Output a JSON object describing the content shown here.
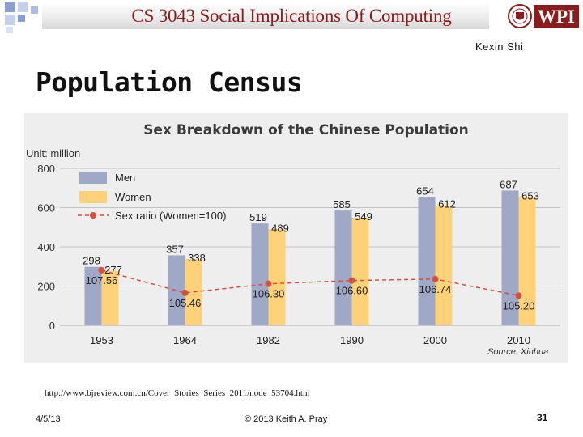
{
  "header": {
    "course_title": "CS 3043 Social Implications Of Computing",
    "logo_text": "WPI",
    "author": "Kexin Shi"
  },
  "slide": {
    "title": "Population Census",
    "source_url": "http://www.bjreview.com.cn/Cover_Stories_Series_2011/node_53704.htm"
  },
  "footer": {
    "date": "4/5/13",
    "copyright": "© 2013 Keith A. Pray",
    "page_number": "31"
  },
  "colors": {
    "men": "#9fa8c6",
    "women": "#ffd27a",
    "ratio": "#d4503f",
    "title_red": "#8c1c1c"
  },
  "chart_data": {
    "type": "bar",
    "title": "Sex Breakdown of the Chinese Population",
    "unit_label": "Unit: million",
    "categories": [
      "1953",
      "1964",
      "1982",
      "1990",
      "2000",
      "2010"
    ],
    "series": [
      {
        "name": "Men",
        "values": [
          298,
          357,
          519,
          585,
          654,
          687
        ]
      },
      {
        "name": "Women",
        "values": [
          277,
          338,
          489,
          549,
          612,
          653
        ]
      }
    ],
    "line_series": {
      "name": "Sex ratio (Women=100)",
      "values": [
        107.56,
        105.46,
        106.3,
        106.6,
        106.74,
        105.2
      ],
      "labels": [
        "107.56",
        "105.46",
        "106.30",
        "106.60",
        "106.74",
        "105.20"
      ]
    },
    "ylim": [
      0,
      800
    ],
    "yticks": [
      0,
      200,
      400,
      600,
      800
    ],
    "legend_position": "top-left",
    "source_note": "Source: Xinhua"
  }
}
